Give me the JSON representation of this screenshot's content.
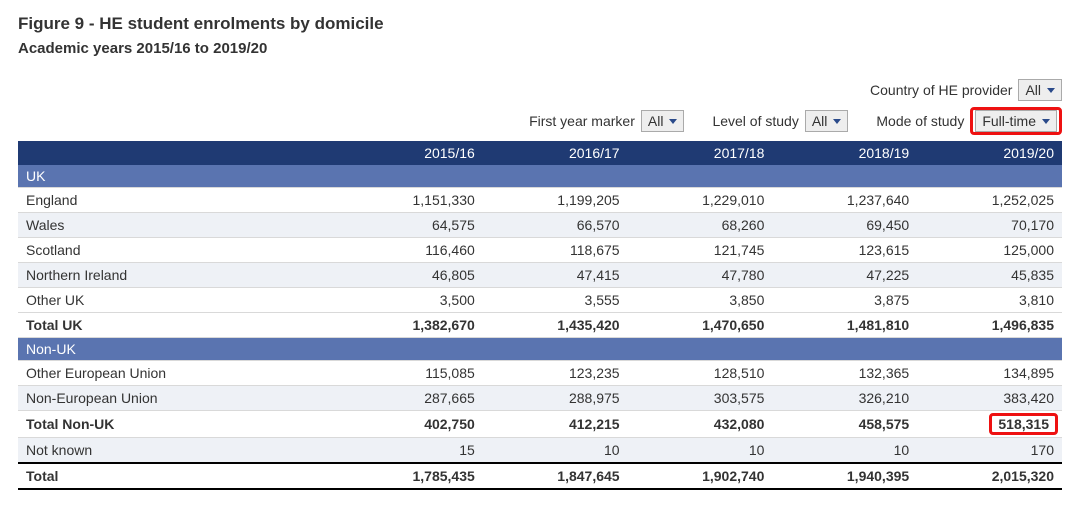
{
  "figure": {
    "title": "Figure 9 - HE student enrolments by domicile",
    "subtitle": "Academic years 2015/16 to 2019/20"
  },
  "filters": {
    "country": {
      "label": "Country of HE provider",
      "value": "All"
    },
    "first_year": {
      "label": "First year marker",
      "value": "All"
    },
    "level": {
      "label": "Level of study",
      "value": "All"
    },
    "mode": {
      "label": "Mode of study",
      "value": "Full-time",
      "highlighted": true
    }
  },
  "table": {
    "years": [
      "2015/16",
      "2016/17",
      "2017/18",
      "2018/19",
      "2019/20"
    ],
    "sections": [
      {
        "heading": "UK",
        "rows": [
          {
            "label": "England",
            "values": [
              "1,151,330",
              "1,199,205",
              "1,229,010",
              "1,237,640",
              "1,252,025"
            ],
            "stripe": false
          },
          {
            "label": "Wales",
            "values": [
              "64,575",
              "66,570",
              "68,260",
              "69,450",
              "70,170"
            ],
            "stripe": true
          },
          {
            "label": "Scotland",
            "values": [
              "116,460",
              "118,675",
              "121,745",
              "123,615",
              "125,000"
            ],
            "stripe": false
          },
          {
            "label": "Northern Ireland",
            "values": [
              "46,805",
              "47,415",
              "47,780",
              "47,225",
              "45,835"
            ],
            "stripe": true
          },
          {
            "label": "Other UK",
            "values": [
              "3,500",
              "3,555",
              "3,850",
              "3,875",
              "3,810"
            ],
            "stripe": false
          }
        ],
        "subtotal": {
          "label": "Total UK",
          "values": [
            "1,382,670",
            "1,435,420",
            "1,470,650",
            "1,481,810",
            "1,496,835"
          ]
        }
      },
      {
        "heading": "Non-UK",
        "rows": [
          {
            "label": "Other European Union",
            "values": [
              "115,085",
              "123,235",
              "128,510",
              "132,365",
              "134,895"
            ],
            "stripe": false
          },
          {
            "label": "Non-European Union",
            "values": [
              "287,665",
              "288,975",
              "303,575",
              "326,210",
              "383,420"
            ],
            "stripe": true
          }
        ],
        "subtotal": {
          "label": "Total Non-UK",
          "values": [
            "402,750",
            "412,215",
            "432,080",
            "458,575",
            "518,315"
          ],
          "highlight_index": 4
        }
      }
    ],
    "extra_rows": [
      {
        "label": "Not known",
        "values": [
          "15",
          "10",
          "10",
          "10",
          "170"
        ],
        "stripe": true
      }
    ],
    "grand_total": {
      "label": "Total",
      "values": [
        "1,785,435",
        "1,847,645",
        "1,902,740",
        "1,940,395",
        "2,015,320"
      ]
    }
  },
  "colors": {
    "header_bg": "#1f3a73",
    "section_bg": "#5a74b0",
    "stripe_bg": "#eef1f6",
    "highlight_border": "#e11"
  }
}
